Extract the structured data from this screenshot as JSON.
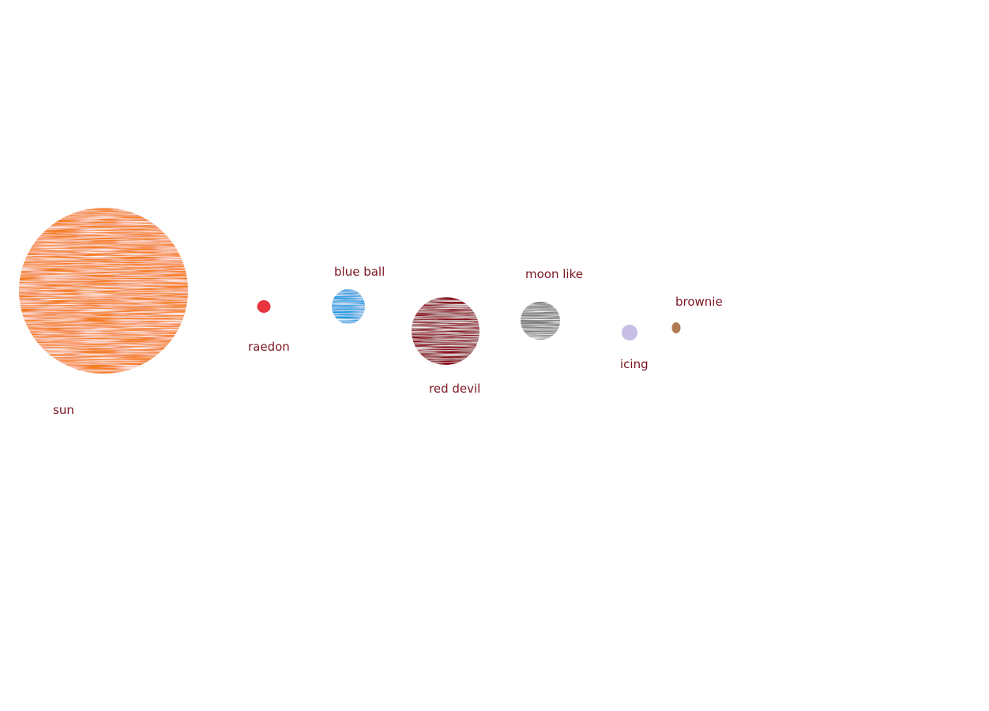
{
  "bodies": [
    {
      "id": "sun",
      "label": "sun",
      "color": "#f57e22",
      "texture": "crayon"
    },
    {
      "id": "raedon",
      "label": "raedon",
      "color": "#e8343e",
      "texture": "solid"
    },
    {
      "id": "blue-ball",
      "label": "blue ball",
      "color": "#1e9be0",
      "texture": "crayon"
    },
    {
      "id": "red-devil",
      "label": "red devil",
      "color": "#8b0b1f",
      "texture": "crayon"
    },
    {
      "id": "moon-like",
      "label": "moon like",
      "color": "#7f7f7f",
      "texture": "crayon"
    },
    {
      "id": "icing",
      "label": "icing",
      "color": "#c8bfe6",
      "texture": "solid"
    },
    {
      "id": "brownie",
      "label": "brownie",
      "color": "#b07a53",
      "texture": "solid"
    }
  ],
  "label_color": "#7a1622"
}
